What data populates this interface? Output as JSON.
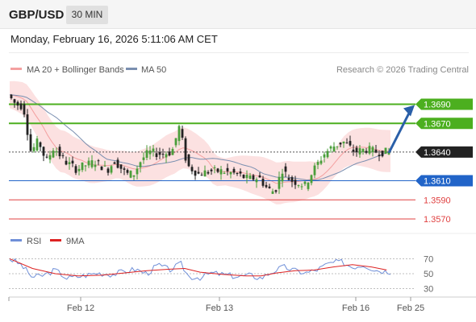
{
  "header": {
    "symbol": "GBP/USD",
    "interval": "30 MIN",
    "datetime": "Monday, February 16, 2026 5:11:06 AM CET"
  },
  "legend": {
    "bb_label": "MA 20 + Bollinger Bands",
    "ma50_label": "MA 50",
    "credit": "Research © 2026 Trading Central"
  },
  "colors": {
    "resistance": "#4caf1f",
    "support": "#2164c8",
    "pivot": "#333333",
    "lower": "#e04040",
    "bull": "#4a9e3a",
    "bear": "#222222",
    "bands": "#fbdcdc",
    "ma20": "#f4a0a0",
    "ma50": "#7a8fb0",
    "rsi": "#6f8fd8",
    "rsi_ma": "#dd2222",
    "arrow": "#2a5fa8"
  },
  "chart_data": {
    "type": "candlestick",
    "y_range": [
      1.3545,
      1.3715
    ],
    "levels": [
      {
        "value": 1.369,
        "label": "1.3690",
        "kind": "resistance"
      },
      {
        "value": 1.367,
        "label": "1.3670",
        "kind": "resistance"
      },
      {
        "value": 1.364,
        "label": "1.3640",
        "kind": "pivot"
      },
      {
        "value": 1.361,
        "label": "1.3610",
        "kind": "support"
      },
      {
        "value": 1.359,
        "label": "1.3590",
        "kind": "lower"
      },
      {
        "value": 1.357,
        "label": "1.3570",
        "kind": "lower"
      }
    ],
    "x_labels": [
      "Feb 12",
      "Feb 13",
      "Feb 16",
      "Feb 25"
    ],
    "price_path": [
      [
        0,
        1.37
      ],
      [
        2,
        1.369
      ],
      [
        4,
        1.3688
      ],
      [
        6,
        1.364
      ],
      [
        8,
        1.3652
      ],
      [
        10,
        1.363
      ],
      [
        12,
        1.3645
      ],
      [
        15,
        1.363
      ],
      [
        18,
        1.3622
      ],
      [
        20,
        1.3626
      ],
      [
        23,
        1.363
      ],
      [
        26,
        1.3621
      ],
      [
        28,
        1.3631
      ],
      [
        31,
        1.3617
      ],
      [
        33,
        1.3617
      ],
      [
        35,
        1.3632
      ],
      [
        37,
        1.364
      ],
      [
        40,
        1.3638
      ],
      [
        43,
        1.364
      ],
      [
        45,
        1.3667
      ],
      [
        47,
        1.3626
      ],
      [
        50,
        1.3617
      ],
      [
        53,
        1.362
      ],
      [
        56,
        1.362
      ],
      [
        60,
        1.3617
      ],
      [
        63,
        1.3612
      ],
      [
        66,
        1.3613
      ],
      [
        68,
        1.3602
      ],
      [
        70,
        1.3598
      ],
      [
        72,
        1.3622
      ],
      [
        74,
        1.3611
      ],
      [
        76,
        1.3608
      ],
      [
        78,
        1.3605
      ],
      [
        80,
        1.362
      ],
      [
        83,
        1.3638
      ],
      [
        85,
        1.3645
      ],
      [
        88,
        1.3651
      ],
      [
        91,
        1.364
      ],
      [
        94,
        1.3643
      ],
      [
        97,
        1.364
      ],
      [
        99,
        1.364
      ]
    ],
    "rsi": {
      "label": "RSI",
      "ma_label": "9MA",
      "ticks": [
        70,
        50,
        30
      ],
      "path": [
        [
          0,
          70
        ],
        [
          3,
          62
        ],
        [
          6,
          45
        ],
        [
          9,
          48
        ],
        [
          12,
          55
        ],
        [
          15,
          44
        ],
        [
          19,
          47
        ],
        [
          23,
          51
        ],
        [
          27,
          49
        ],
        [
          30,
          53
        ],
        [
          33,
          56
        ],
        [
          36,
          50
        ],
        [
          39,
          62
        ],
        [
          42,
          55
        ],
        [
          45,
          63
        ],
        [
          47,
          46
        ],
        [
          50,
          45
        ],
        [
          53,
          51
        ],
        [
          56,
          49
        ],
        [
          60,
          46
        ],
        [
          63,
          48
        ],
        [
          66,
          44
        ],
        [
          68,
          50
        ],
        [
          70,
          55
        ],
        [
          72,
          59
        ],
        [
          75,
          54
        ],
        [
          78,
          51
        ],
        [
          81,
          56
        ],
        [
          84,
          64
        ],
        [
          87,
          66
        ],
        [
          90,
          59
        ],
        [
          93,
          62
        ],
        [
          96,
          55
        ],
        [
          99,
          53
        ]
      ],
      "ma_path": [
        [
          0,
          70
        ],
        [
          6,
          57
        ],
        [
          12,
          50
        ],
        [
          18,
          47
        ],
        [
          24,
          48
        ],
        [
          30,
          51
        ],
        [
          36,
          54
        ],
        [
          42,
          56
        ],
        [
          46,
          57
        ],
        [
          50,
          52
        ],
        [
          56,
          49
        ],
        [
          62,
          47
        ],
        [
          66,
          47
        ],
        [
          70,
          51
        ],
        [
          75,
          54
        ],
        [
          80,
          55
        ],
        [
          85,
          59
        ],
        [
          90,
          62
        ],
        [
          95,
          59
        ],
        [
          99,
          55
        ]
      ]
    }
  }
}
